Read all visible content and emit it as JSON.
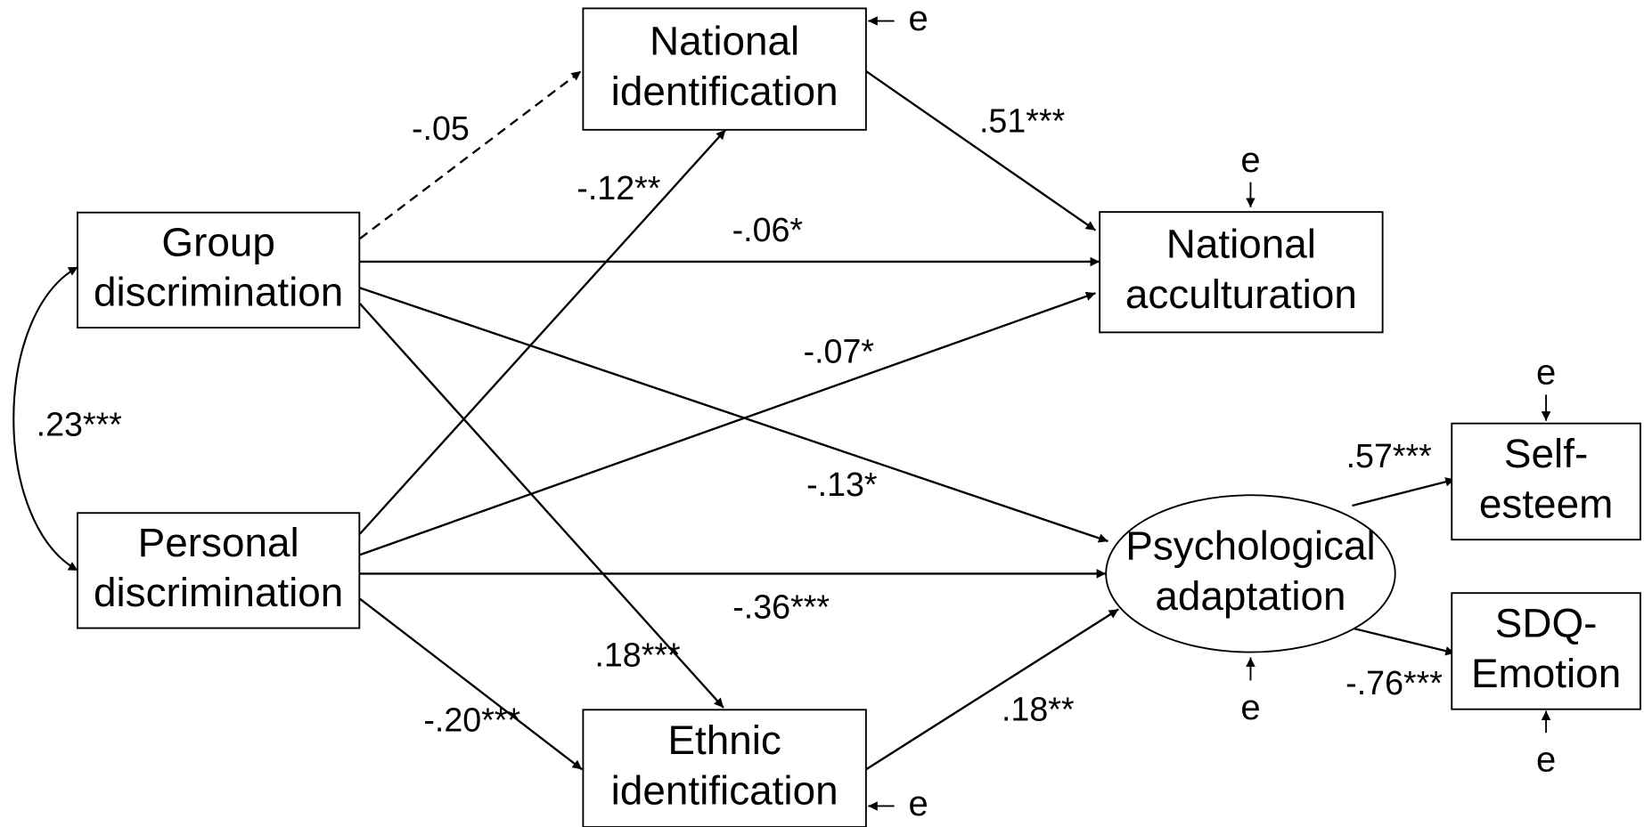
{
  "nodes": [
    {
      "lines": [
        "National",
        "identification"
      ]
    },
    {
      "lines": [
        "National",
        "acculturation"
      ]
    },
    {
      "lines": [
        "Group",
        "discrimination"
      ]
    },
    {
      "lines": [
        "Personal",
        "discrimination"
      ]
    },
    {
      "lines": [
        "Ethnic",
        "identification"
      ]
    },
    {
      "lines": [
        "Psychological",
        "adaptation"
      ]
    },
    {
      "lines": [
        "Self-",
        "esteem"
      ]
    },
    {
      "lines": [
        "SDQ-",
        "Emotion"
      ]
    }
  ],
  "paths": [
    {
      "label": "-.05"
    },
    {
      "label": "-.12**"
    },
    {
      "label": ".51***"
    },
    {
      "label": "-.06*"
    },
    {
      "label": "-.07*"
    },
    {
      "label": "-.13*"
    },
    {
      "label": ".18***"
    },
    {
      "label": "-.36***"
    },
    {
      "label": "-.20***"
    },
    {
      "label": ".18**"
    },
    {
      "label": ".57***"
    },
    {
      "label": "-.76***"
    }
  ],
  "correlation": {
    "label": ".23***"
  },
  "errors": [
    "e",
    "e",
    "e",
    "e",
    "e",
    "e"
  ]
}
